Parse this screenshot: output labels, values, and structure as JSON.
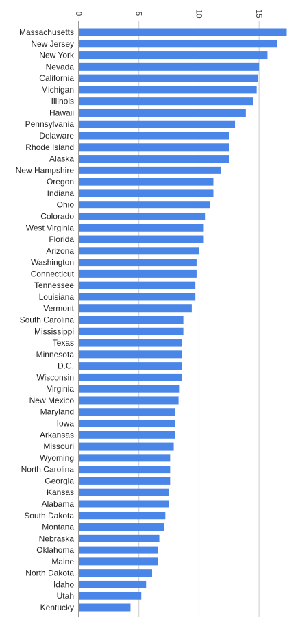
{
  "chart_data": {
    "type": "bar",
    "orientation": "horizontal",
    "title": "",
    "xlabel": "",
    "ylabel": "",
    "xlim": [
      0,
      17.5
    ],
    "ticks": [
      0,
      5,
      10,
      15
    ],
    "tick_labels": [
      "0",
      "5",
      "10",
      "15"
    ],
    "axis_position": "top",
    "tick_label_rotation": "90",
    "grid": true,
    "legend": "none",
    "bar_color": "#4a86e8",
    "grid_color": "#cccccc",
    "categories": [
      "Massachusetts",
      "New Jersey",
      "New York",
      "Nevada",
      "California",
      "Michigan",
      "Illinois",
      "Hawaii",
      "Pennsylvania",
      "Delaware",
      "Rhode Island",
      "Alaska",
      "New Hampshire",
      "Oregon",
      "Indiana",
      "Ohio",
      "Colorado",
      "West Virginia",
      "Florida",
      "Arizona",
      "Washington",
      "Connecticut",
      "Tennessee",
      "Louisiana",
      "Vermont",
      "South Carolina",
      "Mississippi",
      "Texas",
      "Minnesota",
      "D.C.",
      "Wisconsin",
      "Virginia",
      "New Mexico",
      "Maryland",
      "Iowa",
      "Arkansas",
      "Missouri",
      "Wyoming",
      "North Carolina",
      "Georgia",
      "Kansas",
      "Alabama",
      "South Dakota",
      "Montana",
      "Nebraska",
      "Oklahoma",
      "Maine",
      "North Dakota",
      "Idaho",
      "Utah",
      "Kentucky"
    ],
    "values": [
      17.3,
      16.5,
      15.7,
      15.0,
      14.9,
      14.8,
      14.5,
      13.9,
      13.0,
      12.5,
      12.5,
      12.5,
      11.8,
      11.2,
      11.2,
      10.9,
      10.5,
      10.4,
      10.4,
      10.0,
      9.8,
      9.8,
      9.7,
      9.7,
      9.4,
      8.7,
      8.7,
      8.6,
      8.6,
      8.6,
      8.6,
      8.4,
      8.3,
      8.0,
      8.0,
      8.0,
      7.9,
      7.6,
      7.6,
      7.6,
      7.5,
      7.5,
      7.2,
      7.1,
      6.7,
      6.6,
      6.6,
      6.1,
      5.6,
      5.2,
      4.3
    ]
  }
}
